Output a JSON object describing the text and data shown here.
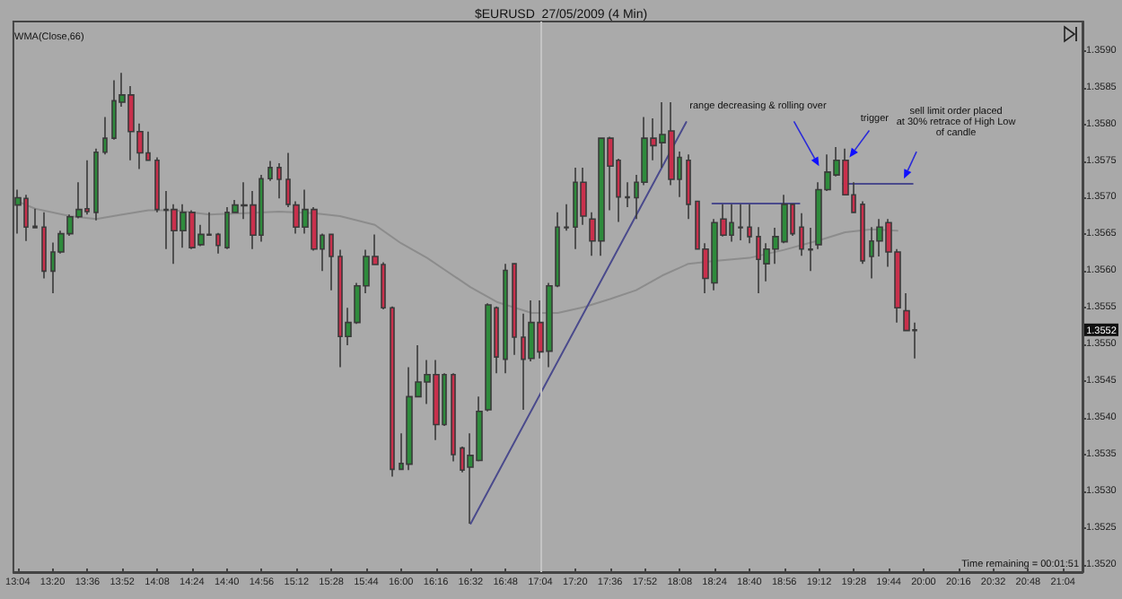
{
  "chart_data": {
    "type": "candlestick",
    "title": "$EURUSD  27/05/2009 (4 Min)",
    "xlim": [
      "2009-05-27T13:02",
      "2009-05-27T21:13"
    ],
    "xticks": [
      {
        "value": "2009-05-27T13:04",
        "label": "13:04"
      },
      {
        "value": "2009-05-27T13:20",
        "label": "13:20"
      },
      {
        "value": "2009-05-27T13:36",
        "label": "13:36"
      },
      {
        "value": "2009-05-27T13:52",
        "label": "13:52"
      },
      {
        "value": "2009-05-27T14:08",
        "label": "14:08"
      },
      {
        "value": "2009-05-27T14:24",
        "label": "14:24"
      },
      {
        "value": "2009-05-27T14:40",
        "label": "14:40"
      },
      {
        "value": "2009-05-27T14:56",
        "label": "14:56"
      },
      {
        "value": "2009-05-27T15:12",
        "label": "15:12"
      },
      {
        "value": "2009-05-27T15:28",
        "label": "15:28"
      },
      {
        "value": "2009-05-27T15:44",
        "label": "15:44"
      },
      {
        "value": "2009-05-27T16:00",
        "label": "16:00"
      },
      {
        "value": "2009-05-27T16:16",
        "label": "16:16"
      },
      {
        "value": "2009-05-27T16:32",
        "label": "16:32"
      },
      {
        "value": "2009-05-27T16:48",
        "label": "16:48"
      },
      {
        "value": "2009-05-27T17:04",
        "label": "17:04"
      },
      {
        "value": "2009-05-27T17:20",
        "label": "17:20"
      },
      {
        "value": "2009-05-27T17:36",
        "label": "17:36"
      },
      {
        "value": "2009-05-27T17:52",
        "label": "17:52"
      },
      {
        "value": "2009-05-27T18:08",
        "label": "18:08"
      },
      {
        "value": "2009-05-27T18:24",
        "label": "18:24"
      },
      {
        "value": "2009-05-27T18:40",
        "label": "18:40"
      },
      {
        "value": "2009-05-27T18:56",
        "label": "18:56"
      },
      {
        "value": "2009-05-27T19:12",
        "label": "19:12"
      },
      {
        "value": "2009-05-27T19:28",
        "label": "19:28"
      },
      {
        "value": "2009-05-27T19:44",
        "label": "19:44"
      },
      {
        "value": "2009-05-27T20:00",
        "label": "20:00"
      },
      {
        "value": "2009-05-27T20:16",
        "label": "20:16"
      },
      {
        "value": "2009-05-27T20:32",
        "label": "20:32"
      },
      {
        "value": "2009-05-27T20:48",
        "label": "20:48"
      },
      {
        "value": "2009-05-27T21:04",
        "label": "21:04"
      }
    ],
    "ylim": [
      1.3519,
      1.3594
    ],
    "yticks": [
      {
        "value": 1.352,
        "label": "1.3520"
      },
      {
        "value": 1.3525,
        "label": "1.3525"
      },
      {
        "value": 1.353,
        "label": "1.3530"
      },
      {
        "value": 1.3535,
        "label": "1.3535"
      },
      {
        "value": 1.354,
        "label": "1.3540"
      },
      {
        "value": 1.3545,
        "label": "1.3545"
      },
      {
        "value": 1.355,
        "label": "1.3550"
      },
      {
        "value": 1.3555,
        "label": "1.3555"
      },
      {
        "value": 1.356,
        "label": "1.3560"
      },
      {
        "value": 1.3565,
        "label": "1.3565"
      },
      {
        "value": 1.357,
        "label": "1.3570"
      },
      {
        "value": 1.3575,
        "label": "1.3575"
      },
      {
        "value": 1.358,
        "label": "1.3580"
      },
      {
        "value": 1.3585,
        "label": "1.3585"
      },
      {
        "value": 1.359,
        "label": "1.3590"
      }
    ],
    "series": [
      {
        "x": [
          "2009-05-27T13:04",
          "2009-05-27T13:08",
          "2009-05-27T13:12",
          "2009-05-27T13:16",
          "2009-05-27T13:20",
          "2009-05-27T13:24",
          "2009-05-27T13:28",
          "2009-05-27T13:32",
          "2009-05-27T13:36",
          "2009-05-27T13:40",
          "2009-05-27T13:44",
          "2009-05-27T13:48",
          "2009-05-27T13:52",
          "2009-05-27T13:56",
          "2009-05-27T14:00",
          "2009-05-27T14:04",
          "2009-05-27T14:08",
          "2009-05-27T14:12",
          "2009-05-27T14:16",
          "2009-05-27T14:20",
          "2009-05-27T14:24",
          "2009-05-27T14:28",
          "2009-05-27T14:32",
          "2009-05-27T14:36",
          "2009-05-27T14:40",
          "2009-05-27T14:44",
          "2009-05-27T14:48",
          "2009-05-27T14:52",
          "2009-05-27T14:56",
          "2009-05-27T15:00",
          "2009-05-27T15:04",
          "2009-05-27T15:08",
          "2009-05-27T15:12",
          "2009-05-27T15:16",
          "2009-05-27T15:20",
          "2009-05-27T15:24",
          "2009-05-27T15:28",
          "2009-05-27T15:32",
          "2009-05-27T15:36",
          "2009-05-27T15:40",
          "2009-05-27T15:44",
          "2009-05-27T15:48",
          "2009-05-27T15:52",
          "2009-05-27T15:56",
          "2009-05-27T16:00",
          "2009-05-27T16:04",
          "2009-05-27T16:08",
          "2009-05-27T16:12",
          "2009-05-27T16:16",
          "2009-05-27T16:20",
          "2009-05-27T16:24",
          "2009-05-27T16:28",
          "2009-05-27T16:32",
          "2009-05-27T16:36",
          "2009-05-27T16:40",
          "2009-05-27T16:44",
          "2009-05-27T16:48",
          "2009-05-27T16:52",
          "2009-05-27T16:56",
          "2009-05-27T17:00",
          "2009-05-27T17:04",
          "2009-05-27T17:08",
          "2009-05-27T17:12",
          "2009-05-27T17:16",
          "2009-05-27T17:20",
          "2009-05-27T17:24",
          "2009-05-27T17:28",
          "2009-05-27T17:32",
          "2009-05-27T17:36",
          "2009-05-27T17:40",
          "2009-05-27T17:44",
          "2009-05-27T17:48",
          "2009-05-27T17:52",
          "2009-05-27T17:56",
          "2009-05-27T18:00",
          "2009-05-27T18:04",
          "2009-05-27T18:08",
          "2009-05-27T18:12",
          "2009-05-27T18:16",
          "2009-05-27T18:20",
          "2009-05-27T18:24",
          "2009-05-27T18:28",
          "2009-05-27T18:32",
          "2009-05-27T18:36",
          "2009-05-27T18:40",
          "2009-05-27T18:44",
          "2009-05-27T18:48",
          "2009-05-27T18:52",
          "2009-05-27T18:56",
          "2009-05-27T19:00",
          "2009-05-27T19:04",
          "2009-05-27T19:08",
          "2009-05-27T19:12",
          "2009-05-27T19:16",
          "2009-05-27T19:20",
          "2009-05-27T19:24",
          "2009-05-27T19:28",
          "2009-05-27T19:32",
          "2009-05-27T19:36",
          "2009-05-27T19:40",
          "2009-05-27T19:44",
          "2009-05-27T19:48",
          "2009-05-27T19:52",
          "2009-05-27T19:56"
        ],
        "ohlc": [
          [
            1.3569,
            1.35711,
            1.35651,
            1.357
          ],
          [
            1.35699,
            1.35704,
            1.35641,
            1.3566
          ],
          [
            1.35661,
            1.35685,
            1.35659,
            1.35659
          ],
          [
            1.3566,
            1.3568,
            1.3559,
            1.356
          ],
          [
            1.356,
            1.35639,
            1.3557,
            1.35626
          ],
          [
            1.35626,
            1.35655,
            1.35624,
            1.35651
          ],
          [
            1.35651,
            1.35677,
            1.35648,
            1.35674
          ],
          [
            1.35674,
            1.35721,
            1.35672,
            1.35684
          ],
          [
            1.35685,
            1.35751,
            1.35677,
            1.35681
          ],
          [
            1.3568,
            1.35767,
            1.35669,
            1.35762
          ],
          [
            1.35762,
            1.3581,
            1.35759,
            1.35781
          ],
          [
            1.35781,
            1.3586,
            1.35779,
            1.35832
          ],
          [
            1.3583,
            1.3587,
            1.35824,
            1.3584
          ],
          [
            1.3584,
            1.35852,
            1.35751,
            1.3579
          ],
          [
            1.3579,
            1.35801,
            1.35739,
            1.35761
          ],
          [
            1.35761,
            1.3579,
            1.3575,
            1.35751
          ],
          [
            1.35751,
            1.35755,
            1.3568,
            1.35684
          ],
          [
            1.35684,
            1.35709,
            1.3563,
            1.35683
          ],
          [
            1.35684,
            1.35691,
            1.3561,
            1.35655
          ],
          [
            1.35655,
            1.35691,
            1.35632,
            1.3568
          ],
          [
            1.3568,
            1.35683,
            1.3563,
            1.35632
          ],
          [
            1.35636,
            1.35663,
            1.35634,
            1.3565
          ],
          [
            1.3565,
            1.3568,
            1.35648,
            1.35649
          ],
          [
            1.3565,
            1.35652,
            1.35624,
            1.35635
          ],
          [
            1.35632,
            1.35687,
            1.3563,
            1.3568
          ],
          [
            1.3568,
            1.35697,
            1.35679,
            1.3569
          ],
          [
            1.3569,
            1.35721,
            1.35671,
            1.35689
          ],
          [
            1.3569,
            1.35709,
            1.3563,
            1.35649
          ],
          [
            1.35649,
            1.35731,
            1.3564,
            1.35726
          ],
          [
            1.35726,
            1.3575,
            1.35723,
            1.35741
          ],
          [
            1.35741,
            1.35747,
            1.35699,
            1.35725
          ],
          [
            1.35725,
            1.35761,
            1.35687,
            1.35691
          ],
          [
            1.3569,
            1.35695,
            1.35651,
            1.3566
          ],
          [
            1.3566,
            1.35711,
            1.35651,
            1.35684
          ],
          [
            1.35684,
            1.35687,
            1.35628,
            1.3563
          ],
          [
            1.3563,
            1.35651,
            1.356,
            1.35649
          ],
          [
            1.3565,
            1.35651,
            1.35574,
            1.3562
          ],
          [
            1.3562,
            1.35629,
            1.35469,
            1.35511
          ],
          [
            1.35511,
            1.3555,
            1.35499,
            1.3553
          ],
          [
            1.3553,
            1.35584,
            1.35528,
            1.3558
          ],
          [
            1.3558,
            1.35629,
            1.3557,
            1.3562
          ],
          [
            1.3562,
            1.3565,
            1.35608,
            1.35609
          ],
          [
            1.35609,
            1.35612,
            1.35548,
            1.3555
          ],
          [
            1.3555,
            1.35552,
            1.3532,
            1.3533
          ],
          [
            1.3533,
            1.35379,
            1.35329,
            1.35338
          ],
          [
            1.35337,
            1.35469,
            1.35329,
            1.35429
          ],
          [
            1.35429,
            1.35499,
            1.35428,
            1.35449
          ],
          [
            1.35449,
            1.35479,
            1.35419,
            1.35459
          ],
          [
            1.35459,
            1.35479,
            1.3537,
            1.35391
          ],
          [
            1.35391,
            1.35461,
            1.35389,
            1.35459
          ],
          [
            1.35459,
            1.35461,
            1.35341,
            1.3535
          ],
          [
            1.35359,
            1.35361,
            1.35326,
            1.35329
          ],
          [
            1.35333,
            1.35379,
            1.35256,
            1.35349
          ],
          [
            1.35342,
            1.35429,
            1.35341,
            1.35409
          ],
          [
            1.35411,
            1.35556,
            1.35409,
            1.35554
          ],
          [
            1.3555,
            1.35552,
            1.35461,
            1.35483
          ],
          [
            1.3548,
            1.3561,
            1.35461,
            1.35601
          ],
          [
            1.3561,
            1.3561,
            1.35486,
            1.3551
          ],
          [
            1.3551,
            1.35542,
            1.35411,
            1.3548
          ],
          [
            1.35481,
            1.3556,
            1.35477,
            1.3553
          ],
          [
            1.3553,
            1.3556,
            1.35481,
            1.3549
          ],
          [
            1.35491,
            1.35584,
            1.35469,
            1.3558
          ],
          [
            1.3558,
            1.3568,
            1.35578,
            1.3566
          ],
          [
            1.3566,
            1.35691,
            1.35655,
            1.35659
          ],
          [
            1.3566,
            1.35741,
            1.3563,
            1.35721
          ],
          [
            1.35721,
            1.35741,
            1.35663,
            1.35675
          ],
          [
            1.35671,
            1.3568,
            1.35621,
            1.35641
          ],
          [
            1.35641,
            1.35782,
            1.35621,
            1.35781
          ],
          [
            1.35781,
            1.35783,
            1.35683,
            1.35743
          ],
          [
            1.35751,
            1.35753,
            1.35667,
            1.35701
          ],
          [
            1.35701,
            1.35721,
            1.35687,
            1.357
          ],
          [
            1.357,
            1.35731,
            1.35671,
            1.35721
          ],
          [
            1.35721,
            1.3581,
            1.35717,
            1.35781
          ],
          [
            1.35781,
            1.35808,
            1.35751,
            1.35771
          ],
          [
            1.35775,
            1.3583,
            1.35741,
            1.35786
          ],
          [
            1.35791,
            1.3583,
            1.35717,
            1.35725
          ],
          [
            1.35725,
            1.35763,
            1.35701,
            1.35755
          ],
          [
            1.35751,
            1.35759,
            1.35671,
            1.35691
          ],
          [
            1.35695,
            1.35696,
            1.35629,
            1.3563
          ],
          [
            1.3563,
            1.35638,
            1.3557,
            1.3559
          ],
          [
            1.35584,
            1.35671,
            1.35574,
            1.35666
          ],
          [
            1.35671,
            1.35691,
            1.35647,
            1.35649
          ],
          [
            1.35649,
            1.35691,
            1.3564,
            1.35666
          ],
          [
            1.3566,
            1.35691,
            1.35642,
            1.35659
          ],
          [
            1.3566,
            1.35691,
            1.35638,
            1.35647
          ],
          [
            1.35647,
            1.3566,
            1.3557,
            1.35616
          ],
          [
            1.3561,
            1.35638,
            1.35586,
            1.3563
          ],
          [
            1.3563,
            1.35659,
            1.3561,
            1.35647
          ],
          [
            1.3564,
            1.35704,
            1.35638,
            1.35691
          ],
          [
            1.35691,
            1.35691,
            1.35648,
            1.35651
          ],
          [
            1.3566,
            1.35679,
            1.35621,
            1.3563
          ],
          [
            1.3563,
            1.35659,
            1.356,
            1.35629
          ],
          [
            1.35636,
            1.35721,
            1.3563,
            1.35711
          ],
          [
            1.35711,
            1.35759,
            1.35709,
            1.35735
          ],
          [
            1.35731,
            1.35769,
            1.35729,
            1.35751
          ],
          [
            1.35751,
            1.35767,
            1.35703,
            1.35704
          ],
          [
            1.35704,
            1.35721,
            1.35679,
            1.3568
          ],
          [
            1.35691,
            1.35695,
            1.3561,
            1.35614
          ],
          [
            1.3562,
            1.3566,
            1.3559,
            1.35641
          ],
          [
            1.35641,
            1.35671,
            1.3562,
            1.3566
          ],
          [
            1.35666,
            1.35671,
            1.35606,
            1.35626
          ],
          [
            1.35626,
            1.3563,
            1.3553,
            1.3555
          ],
          [
            1.35546,
            1.3557,
            1.35518,
            1.35519
          ],
          [
            1.3552,
            1.3553,
            1.35481,
            1.35519
          ]
        ],
        "colors": [
          "#2e8b3c",
          "#c9304c",
          "#c9304c",
          "#c9304c",
          "#2e8b3c",
          "#2e8b3c",
          "#2e8b3c",
          "#2e8b3c",
          "#c9304c",
          "#2e8b3c",
          "#2e8b3c",
          "#2e8b3c",
          "#2e8b3c",
          "#c9304c",
          "#c9304c",
          "#c9304c",
          "#c9304c",
          "#c9304c",
          "#c9304c",
          "#2e8b3c",
          "#c9304c",
          "#2e8b3c",
          "#c9304c",
          "#c9304c",
          "#2e8b3c",
          "#2e8b3c",
          "#c9304c",
          "#c9304c",
          "#2e8b3c",
          "#2e8b3c",
          "#c9304c",
          "#c9304c",
          "#c9304c",
          "#2e8b3c",
          "#c9304c",
          "#2e8b3c",
          "#c9304c",
          "#c9304c",
          "#2e8b3c",
          "#2e8b3c",
          "#2e8b3c",
          "#c9304c",
          "#c9304c",
          "#c9304c",
          "#2e8b3c",
          "#2e8b3c",
          "#2e8b3c",
          "#2e8b3c",
          "#c9304c",
          "#2e8b3c",
          "#c9304c",
          "#c9304c",
          "#2e8b3c",
          "#2e8b3c",
          "#2e8b3c",
          "#c9304c",
          "#2e8b3c",
          "#c9304c",
          "#c9304c",
          "#2e8b3c",
          "#c9304c",
          "#2e8b3c",
          "#2e8b3c",
          "#c9304c",
          "#2e8b3c",
          "#c9304c",
          "#c9304c",
          "#2e8b3c",
          "#c9304c",
          "#c9304c",
          "#c9304c",
          "#2e8b3c",
          "#2e8b3c",
          "#c9304c",
          "#2e8b3c",
          "#c9304c",
          "#2e8b3c",
          "#c9304c",
          "#c9304c",
          "#c9304c",
          "#2e8b3c",
          "#c9304c",
          "#2e8b3c",
          "#c9304c",
          "#c9304c",
          "#c9304c",
          "#2e8b3c",
          "#2e8b3c",
          "#2e8b3c",
          "#c9304c",
          "#c9304c",
          "#c9304c",
          "#2e8b3c",
          "#2e8b3c",
          "#2e8b3c",
          "#c9304c",
          "#c9304c",
          "#c9304c",
          "#2e8b3c",
          "#2e8b3c",
          "#c9304c",
          "#c9304c",
          "#c9304c",
          "#c9304c"
        ]
      },
      {
        "type": "line",
        "color": "#8c8c8c",
        "x": [
          "2009-05-27T13:04",
          "2009-05-27T13:12",
          "2009-05-27T13:28",
          "2009-05-27T13:40",
          "2009-05-27T13:52",
          "2009-05-27T14:04",
          "2009-05-27T14:16",
          "2009-05-27T14:32",
          "2009-05-27T14:48",
          "2009-05-27T15:04",
          "2009-05-27T15:20",
          "2009-05-27T15:32",
          "2009-05-27T15:48",
          "2009-05-27T16:00",
          "2009-05-27T16:12",
          "2009-05-27T16:20",
          "2009-05-27T16:32",
          "2009-05-27T16:44",
          "2009-05-27T17:00",
          "2009-05-27T17:12",
          "2009-05-27T17:24",
          "2009-05-27T17:36",
          "2009-05-27T17:48",
          "2009-05-27T18:00",
          "2009-05-27T18:12",
          "2009-05-27T18:24",
          "2009-05-27T18:40",
          "2009-05-27T18:56",
          "2009-05-27T19:12",
          "2009-05-27T19:24",
          "2009-05-27T19:36",
          "2009-05-27T19:48"
        ],
        "values": [
          1.35695,
          1.35685,
          1.35675,
          1.35671,
          1.35677,
          1.35683,
          1.35683,
          1.35677,
          1.35679,
          1.35681,
          1.35679,
          1.35675,
          1.35663,
          1.35638,
          1.35618,
          1.35602,
          1.35578,
          1.35558,
          1.35543,
          1.35543,
          1.35551,
          1.35562,
          1.35574,
          1.35594,
          1.3561,
          1.35614,
          1.35618,
          1.35629,
          1.35642,
          1.35653,
          1.35657,
          1.35655
        ]
      },
      {
        "type": "line",
        "color": "#4a4a8c",
        "x": [
          "2009-05-27T16:32",
          "2009-05-27T18:11"
        ],
        "values": [
          1.35256,
          1.35803
        ]
      },
      {
        "type": "line",
        "color": "#4a4a8c",
        "x": [
          "2009-05-27T18:23",
          "2009-05-27T19:03"
        ],
        "values": [
          1.35692,
          1.35692
        ]
      },
      {
        "type": "line",
        "color": "#4a4a8c",
        "x": [
          "2009-05-27T19:23",
          "2009-05-27T19:55"
        ],
        "values": [
          1.35719,
          1.35719
        ]
      }
    ],
    "ref_lines": [
      {
        "axis": "x",
        "value": "2009-05-27T17:04",
        "color": "#c4c4c4"
      }
    ],
    "annotations": [
      "WMA(Close,66)",
      "Time remaining = 00:01:51",
      {
        "text": "range decreasing & rolling over",
        "x": "2009-05-27T19:12",
        "y": 1.35743
      },
      {
        "text": "trigger",
        "x": "2009-05-27T19:26",
        "y": 1.35755
      },
      {
        "text": "sell limit order placed\nat 30% retrace of High Low\nof candle",
        "x": "2009-05-27T19:51",
        "y": 1.35726
      },
      {
        "text": "1.3552",
        "y": 1.3552
      }
    ]
  }
}
